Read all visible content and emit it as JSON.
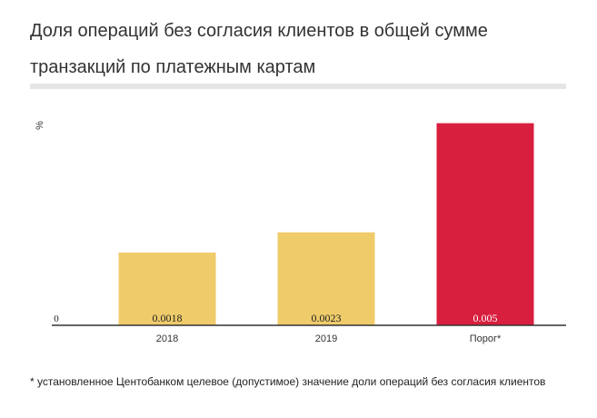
{
  "title": "Доля операций без согласия клиентов в общей сумме транзакций по платежным картам",
  "footnote": "* установленное Центобанком целевое (допустимое) значение доли операций без согласия клиентов",
  "chart_data": {
    "type": "bar",
    "ylabel": "%",
    "categories": [
      "2018",
      "2019",
      "Порог*"
    ],
    "values": [
      0.0018,
      0.0023,
      0.005
    ],
    "value_labels": [
      "0.0018",
      "0.0023",
      "0.005"
    ],
    "zero_label": "0",
    "ylim": [
      0,
      0.0058
    ],
    "colors": [
      "#efcb6a",
      "#efcb6a",
      "#d91f3e"
    ],
    "grid": false
  }
}
